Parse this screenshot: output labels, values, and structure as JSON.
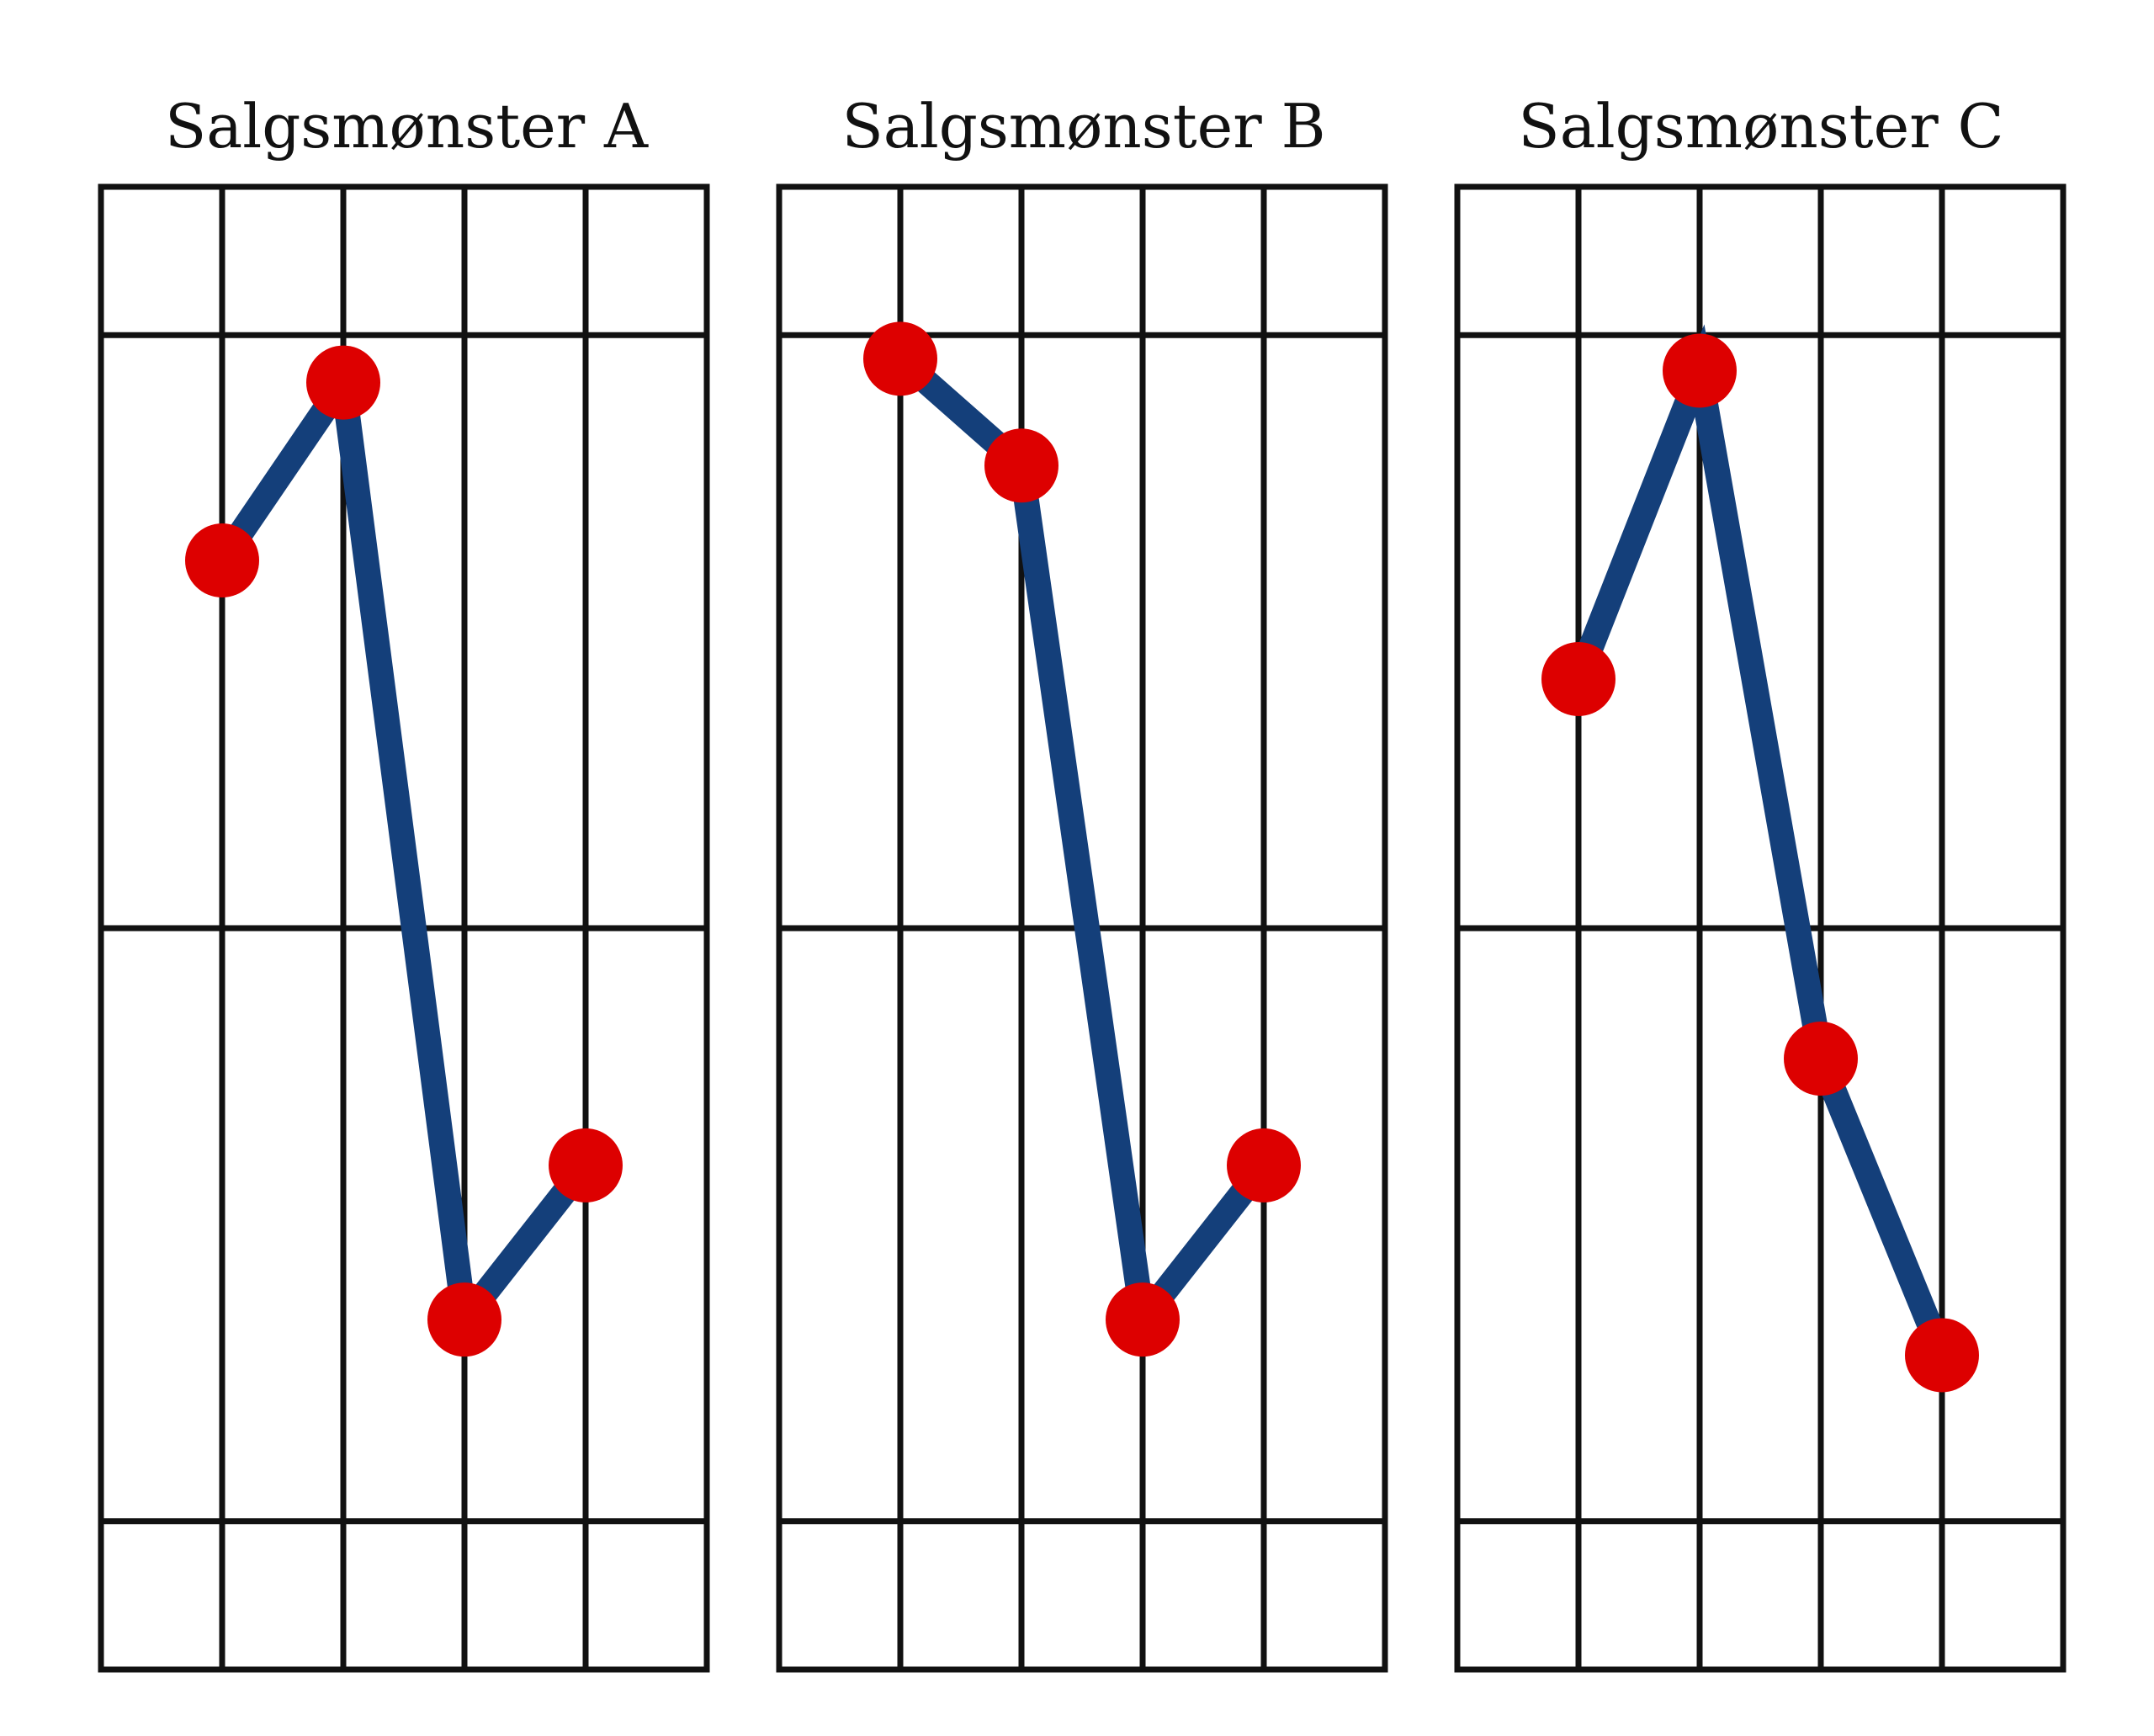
{
  "colors": {
    "line": "#143F7A",
    "marker": "#DD0000",
    "grid": "#111111",
    "background": "#FFFFFF"
  },
  "chart_data": [
    {
      "type": "line",
      "title": "Salgsmønster A",
      "x": [
        1,
        2,
        3,
        4
      ],
      "values": [
        0.81,
        0.96,
        0.17,
        0.3
      ],
      "ylim": [
        0,
        1
      ],
      "xlim": [
        0,
        5
      ],
      "grid": true
    },
    {
      "type": "line",
      "title": "Salgsmønster B",
      "x": [
        1,
        2,
        3,
        4
      ],
      "values": [
        0.98,
        0.89,
        0.17,
        0.3
      ],
      "ylim": [
        0,
        1
      ],
      "xlim": [
        0,
        5
      ],
      "grid": true
    },
    {
      "type": "line",
      "title": "Salgsmønster C",
      "x": [
        1,
        2,
        3,
        4
      ],
      "values": [
        0.71,
        0.97,
        0.39,
        0.14
      ],
      "ylim": [
        0,
        1
      ],
      "xlim": [
        0,
        5
      ],
      "grid": true
    }
  ]
}
